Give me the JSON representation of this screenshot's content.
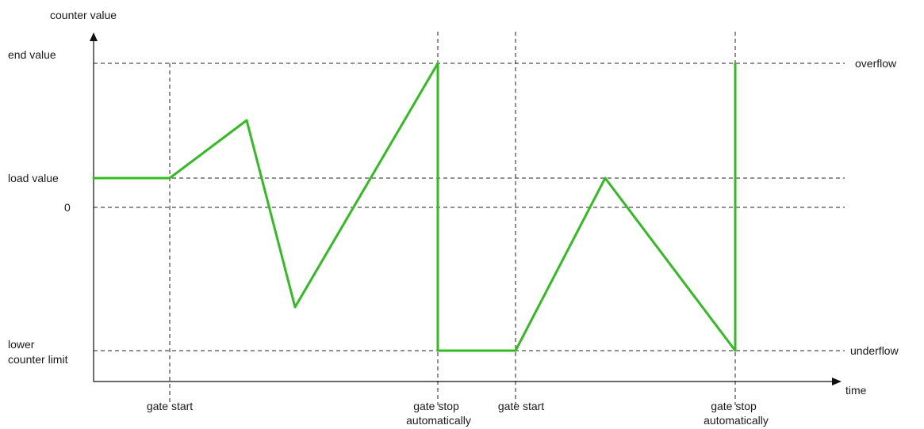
{
  "labels": {
    "y_axis": "counter value",
    "x_axis": "time",
    "end_value": "end value",
    "load_value": "load value",
    "zero": "0",
    "lower_limit_line1": "lower",
    "lower_limit_line2": "counter limit",
    "overflow": "overflow",
    "underflow": "underflow",
    "gate_start": "gate start",
    "gate_stop_line1": "gate stop",
    "gate_stop_line2": "automatically"
  },
  "colors": {
    "curve": "#33bb22"
  }
}
